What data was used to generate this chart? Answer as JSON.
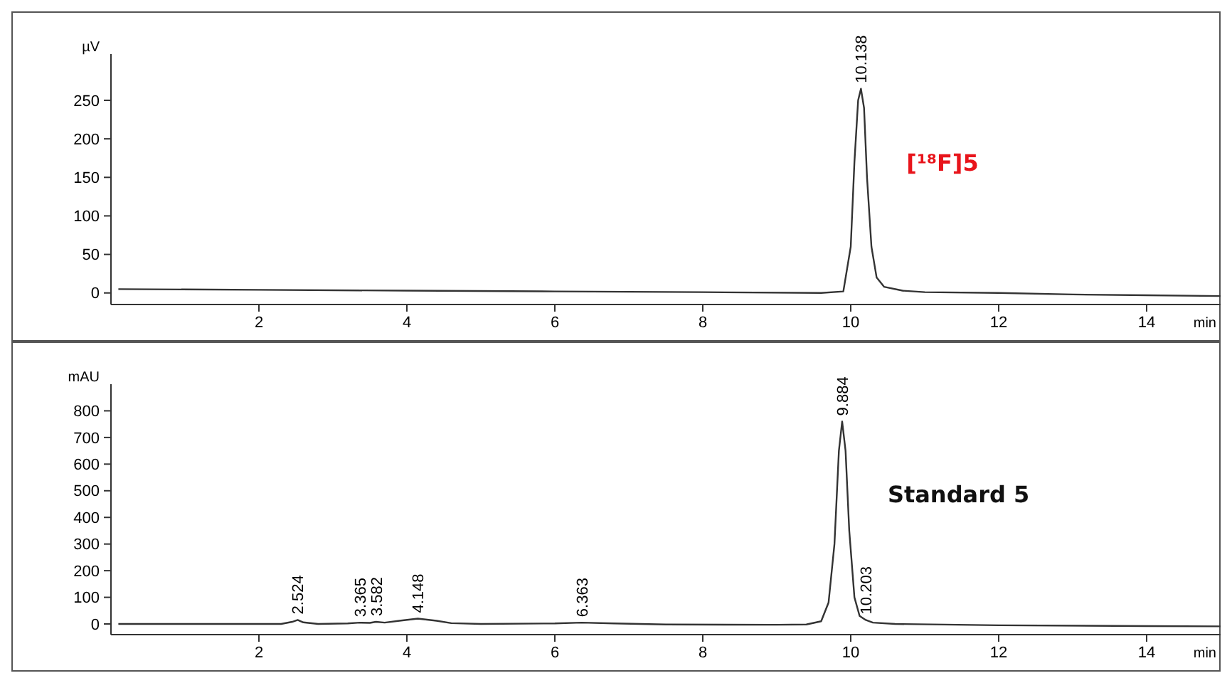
{
  "chart_data": [
    {
      "type": "line",
      "ylabel": "µV",
      "xlabel": "min",
      "xlim": [
        0,
        15
      ],
      "xticks": [
        2,
        4,
        6,
        8,
        10,
        12,
        14
      ],
      "ylim": [
        -15,
        310
      ],
      "yticks": [
        0,
        50,
        100,
        150,
        200,
        250
      ],
      "grid": false,
      "marker": "none",
      "line_style": "solid",
      "series": [
        {
          "name": "[¹⁸F]5",
          "color": "#333333",
          "x": [
            0.1,
            2,
            4,
            6,
            8,
            9.6,
            9.9,
            10.0,
            10.05,
            10.1,
            10.138,
            10.18,
            10.22,
            10.28,
            10.35,
            10.45,
            10.7,
            11,
            12,
            13,
            14,
            15
          ],
          "values": [
            5,
            4,
            3,
            2,
            1,
            0,
            2,
            60,
            170,
            250,
            265,
            240,
            150,
            60,
            20,
            8,
            3,
            1,
            0,
            -2,
            -3,
            -4
          ]
        }
      ],
      "annotations": [
        {
          "text": "10.138",
          "x": 10.138,
          "y": 265
        }
      ]
    },
    {
      "type": "line",
      "ylabel": "mAU",
      "xlabel": "min",
      "xlim": [
        0,
        15
      ],
      "xticks": [
        2,
        4,
        6,
        8,
        10,
        12,
        14
      ],
      "ylim": [
        -40,
        900
      ],
      "yticks": [
        0,
        100,
        200,
        300,
        400,
        500,
        600,
        700,
        800
      ],
      "grid": false,
      "marker": "none",
      "line_style": "solid",
      "series": [
        {
          "name": "Standard 5",
          "color": "#333333",
          "x": [
            0.1,
            2.3,
            2.45,
            2.524,
            2.6,
            2.8,
            3.2,
            3.365,
            3.5,
            3.582,
            3.7,
            3.9,
            4.148,
            4.4,
            4.6,
            5,
            6,
            6.363,
            6.8,
            7.5,
            9,
            9.4,
            9.6,
            9.7,
            9.78,
            9.84,
            9.884,
            9.93,
            9.98,
            10.05,
            10.12,
            10.203,
            10.3,
            10.6,
            12,
            14,
            15
          ],
          "values": [
            0,
            0,
            8,
            15,
            6,
            0,
            2,
            5,
            4,
            8,
            5,
            12,
            20,
            12,
            3,
            0,
            2,
            5,
            2,
            -2,
            -3,
            -2,
            10,
            80,
            300,
            650,
            760,
            650,
            350,
            100,
            30,
            15,
            5,
            0,
            -5,
            -8,
            -9
          ]
        }
      ],
      "annotations": [
        {
          "text": "2.524",
          "x": 2.524,
          "y": 15
        },
        {
          "text": "3.365",
          "x": 3.365,
          "y": 5
        },
        {
          "text": "3.582",
          "x": 3.582,
          "y": 8
        },
        {
          "text": "4.148",
          "x": 4.148,
          "y": 20
        },
        {
          "text": "6.363",
          "x": 6.363,
          "y": 5
        },
        {
          "text": "9.884",
          "x": 9.884,
          "y": 760
        },
        {
          "text": "10.203",
          "x": 10.203,
          "y": 15
        }
      ]
    }
  ]
}
